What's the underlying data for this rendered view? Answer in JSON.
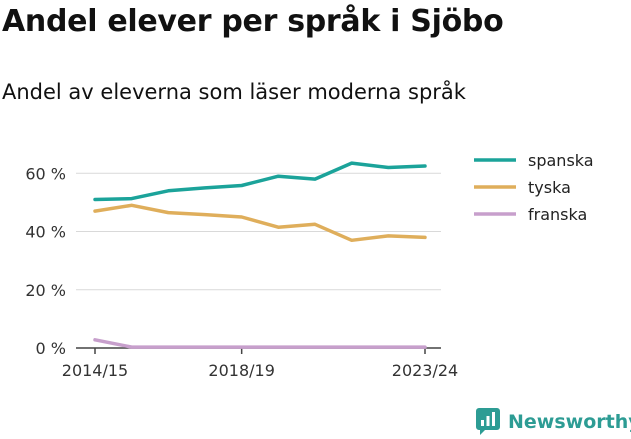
{
  "header": {
    "title": "Andel elever per språk i Sjöbo",
    "subtitle": "Andel av eleverna som läser moderna språk"
  },
  "brand": {
    "name": "Newsworthy",
    "color": "#2d9c94"
  },
  "chart_data": {
    "type": "line",
    "title": "Andel elever per språk i Sjöbo",
    "subtitle": "Andel av eleverna som läser moderna språk",
    "xlabel": "",
    "ylabel": "",
    "x": [
      "2014/15",
      "2015/16",
      "2016/17",
      "2017/18",
      "2018/19",
      "2019/20",
      "2020/21",
      "2021/22",
      "2022/23",
      "2023/24"
    ],
    "x_tick_labels": [
      "2014/15",
      "2018/19",
      "2023/24"
    ],
    "y_ticks": [
      0,
      20,
      40,
      60
    ],
    "y_tick_labels": [
      "0 %",
      "20 %",
      "40 %",
      "60 %"
    ],
    "ylim": [
      0,
      68
    ],
    "grid": true,
    "legend_position": "right",
    "series": [
      {
        "name": "spanska",
        "color": "#1ba39a",
        "values": [
          51,
          51.3,
          54,
          55,
          55.8,
          59,
          58,
          63.5,
          62,
          62.5
        ]
      },
      {
        "name": "tyska",
        "color": "#dfae5b",
        "values": [
          47,
          49,
          46.5,
          45.8,
          45,
          41.5,
          42.5,
          37,
          38.5,
          38
        ]
      },
      {
        "name": "franska",
        "color": "#c79fcc",
        "values": [
          2.8,
          0.3,
          0.3,
          0.3,
          0.3,
          0.3,
          0.3,
          0.3,
          0.3,
          0.3
        ]
      }
    ]
  }
}
